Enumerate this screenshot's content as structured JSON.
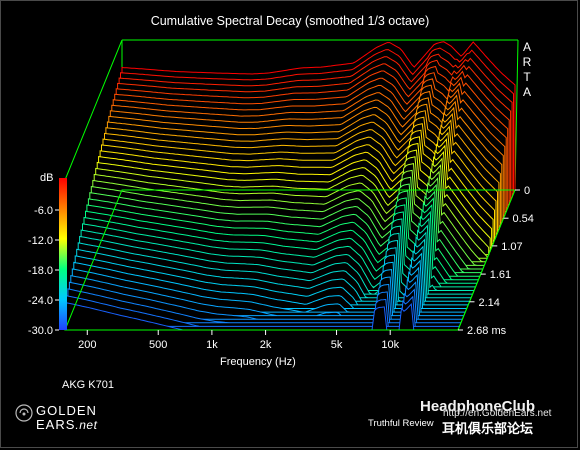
{
  "chart_data": {
    "type": "waterfall",
    "title": "Cumulative Spectral Decay (smoothed 1/3 octave)",
    "xlabel": "Frequency (Hz)",
    "ylabel": "dB",
    "zlabel_unit": "ms",
    "x_scale": "log",
    "xlim": [
      150,
      24000
    ],
    "ylim": [
      -30,
      0
    ],
    "x_ticks": [
      {
        "value": 200,
        "label": "200"
      },
      {
        "value": 500,
        "label": "500"
      },
      {
        "value": 1000,
        "label": "1k"
      },
      {
        "value": 2000,
        "label": "2k"
      },
      {
        "value": 5000,
        "label": "5k"
      },
      {
        "value": 10000,
        "label": "10k"
      }
    ],
    "y_ticks": [
      {
        "value": -6,
        "label": "-6.0"
      },
      {
        "value": -12,
        "label": "-12.0"
      },
      {
        "value": -18,
        "label": "-18.0"
      },
      {
        "value": -24,
        "label": "-24.0"
      },
      {
        "value": -30,
        "label": "-30.0"
      }
    ],
    "time_ticks": [
      {
        "value": 0,
        "label": "0"
      },
      {
        "value": 0.54,
        "label": "0.54"
      },
      {
        "value": 1.07,
        "label": "1.07"
      },
      {
        "value": 1.61,
        "label": "1.61"
      },
      {
        "value": 2.14,
        "label": "2.14"
      },
      {
        "value": 2.68,
        "label": "2.68 ms"
      }
    ],
    "time_range_ms": [
      0,
      2.68
    ],
    "slices": 40,
    "initial_response": {
      "freq": [
        150,
        200,
        300,
        500,
        800,
        1000,
        1500,
        2000,
        3000,
        4000,
        4700,
        5500,
        6500,
        7500,
        8500,
        9500,
        10500,
        12000,
        14000,
        17000,
        20000,
        24000
      ],
      "db": [
        -5.5,
        -5.8,
        -6.3,
        -6.6,
        -6.8,
        -6.6,
        -5.6,
        -5.4,
        -4.6,
        -1.5,
        -0.4,
        -1.8,
        -5.5,
        -3.0,
        -0.8,
        -0.3,
        -1.2,
        -3.3,
        -0.4,
        -3.8,
        -6.5,
        -9.0
      ]
    },
    "colormap": [
      "#2040ff",
      "#00c8ff",
      "#00ff80",
      "#ffff00",
      "#ff8000",
      "#ff0000"
    ],
    "background": "#000000",
    "axis_color": "#00ff00",
    "grid": false,
    "legend": "colorbar-left"
  },
  "labels": {
    "title": "Cumulative Spectral Decay (smoothed 1/3 octave)",
    "xlabel": "Frequency (Hz)",
    "ylabel": "dB",
    "arta": [
      "A",
      "R",
      "T",
      "A"
    ],
    "device": "AKG K701",
    "logo_line1": "GOLDEN",
    "logo_line2": "EARS",
    "logo_suffix": ".net",
    "tagline": "Truthful Review",
    "watermark_brand": "HeadphoneClub",
    "watermark_url": "http://en.GoldenEars.net",
    "watermark_cn": "耳机俱乐部论坛"
  }
}
